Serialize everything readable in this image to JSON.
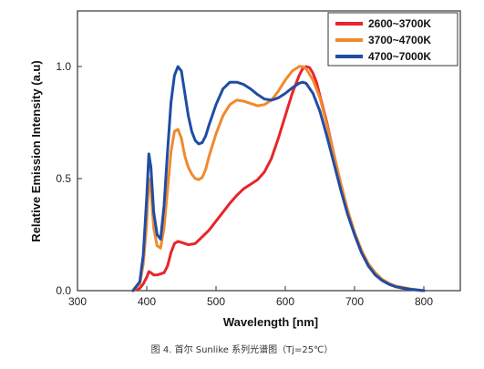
{
  "chart_data": {
    "type": "line",
    "xlabel": "Wavelength [nm]",
    "ylabel": "Relative Emission Intensity (a.u)",
    "xlim": [
      300,
      800
    ],
    "ylim": [
      0,
      1.0
    ],
    "x_ticks": [
      "300",
      "400",
      "500",
      "600",
      "700",
      "800"
    ],
    "y_ticks": [
      "0.0",
      "0.5",
      "1.0"
    ],
    "grid": false,
    "legend_position": "top-right",
    "series": [
      {
        "name": "2600~3700K",
        "color": "#e8252b",
        "x": [
          380,
          390,
          395,
          400,
          403,
          406,
          410,
          415,
          420,
          425,
          430,
          435,
          440,
          445,
          450,
          455,
          460,
          470,
          480,
          490,
          500,
          510,
          520,
          530,
          540,
          550,
          560,
          570,
          580,
          590,
          600,
          610,
          620,
          625,
          630,
          635,
          640,
          645,
          650,
          660,
          670,
          680,
          690,
          700,
          710,
          720,
          730,
          740,
          750,
          760,
          770,
          780,
          790,
          800
        ],
        "y": [
          0.0,
          0.01,
          0.03,
          0.06,
          0.085,
          0.08,
          0.07,
          0.07,
          0.075,
          0.08,
          0.11,
          0.17,
          0.21,
          0.22,
          0.215,
          0.21,
          0.205,
          0.21,
          0.24,
          0.27,
          0.31,
          0.35,
          0.39,
          0.425,
          0.455,
          0.475,
          0.495,
          0.53,
          0.59,
          0.68,
          0.78,
          0.88,
          0.96,
          0.99,
          1.0,
          0.995,
          0.97,
          0.93,
          0.87,
          0.75,
          0.61,
          0.47,
          0.35,
          0.25,
          0.17,
          0.11,
          0.07,
          0.045,
          0.028,
          0.017,
          0.01,
          0.006,
          0.003,
          0.0
        ]
      },
      {
        "name": "3700~4700K",
        "color": "#f08a2c",
        "x": [
          380,
          390,
          395,
          400,
          403,
          406,
          410,
          415,
          420,
          425,
          430,
          435,
          440,
          445,
          450,
          455,
          460,
          465,
          470,
          475,
          480,
          485,
          490,
          500,
          510,
          520,
          530,
          540,
          550,
          560,
          570,
          580,
          590,
          600,
          610,
          620,
          625,
          630,
          640,
          650,
          660,
          670,
          680,
          690,
          700,
          710,
          720,
          730,
          740,
          750,
          760,
          780,
          800
        ],
        "y": [
          0.0,
          0.03,
          0.12,
          0.3,
          0.5,
          0.45,
          0.28,
          0.2,
          0.19,
          0.28,
          0.45,
          0.62,
          0.71,
          0.72,
          0.68,
          0.6,
          0.55,
          0.52,
          0.5,
          0.495,
          0.505,
          0.54,
          0.6,
          0.7,
          0.78,
          0.83,
          0.85,
          0.845,
          0.835,
          0.825,
          0.83,
          0.85,
          0.89,
          0.94,
          0.98,
          1.0,
          1.0,
          0.99,
          0.94,
          0.86,
          0.74,
          0.61,
          0.48,
          0.36,
          0.26,
          0.18,
          0.12,
          0.08,
          0.05,
          0.032,
          0.02,
          0.008,
          0.0
        ]
      },
      {
        "name": "4700~7000K",
        "color": "#1f4da5",
        "x": [
          380,
          390,
          395,
          400,
          403,
          406,
          410,
          415,
          420,
          425,
          430,
          435,
          440,
          445,
          450,
          455,
          460,
          465,
          470,
          475,
          480,
          485,
          490,
          500,
          510,
          520,
          530,
          540,
          550,
          560,
          570,
          580,
          590,
          600,
          610,
          620,
          625,
          630,
          640,
          650,
          660,
          670,
          680,
          690,
          700,
          710,
          720,
          730,
          740,
          750,
          760,
          780,
          800
        ],
        "y": [
          0.0,
          0.04,
          0.16,
          0.42,
          0.61,
          0.55,
          0.35,
          0.25,
          0.23,
          0.38,
          0.62,
          0.84,
          0.96,
          1.0,
          0.98,
          0.88,
          0.78,
          0.71,
          0.67,
          0.655,
          0.66,
          0.69,
          0.74,
          0.83,
          0.9,
          0.93,
          0.93,
          0.92,
          0.9,
          0.875,
          0.855,
          0.85,
          0.86,
          0.88,
          0.905,
          0.925,
          0.93,
          0.925,
          0.88,
          0.8,
          0.69,
          0.57,
          0.45,
          0.34,
          0.25,
          0.17,
          0.11,
          0.07,
          0.045,
          0.028,
          0.017,
          0.006,
          0.0
        ]
      }
    ]
  },
  "caption": "图 4. 首尔 Sunlike 系列光谱图（Tj=25℃）"
}
